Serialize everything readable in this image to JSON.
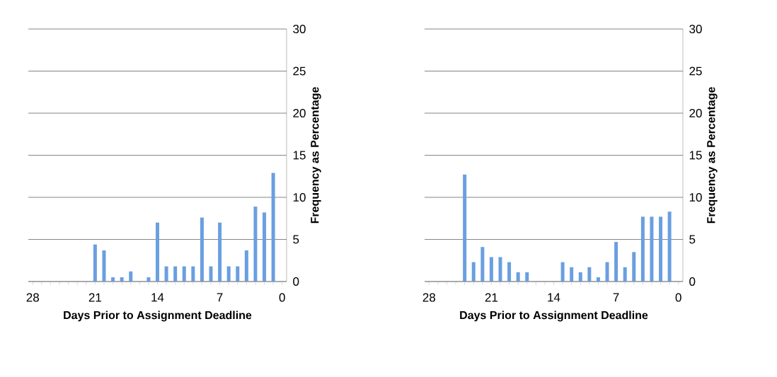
{
  "chart_data": [
    {
      "type": "bar",
      "categories": [
        "28",
        null,
        null,
        null,
        null,
        null,
        null,
        "21",
        null,
        null,
        null,
        null,
        null,
        null,
        "14",
        null,
        null,
        null,
        null,
        null,
        null,
        "7",
        null,
        null,
        null,
        null,
        null,
        null,
        "0"
      ],
      "values": [
        0,
        0,
        0,
        0,
        0,
        0,
        0,
        4.4,
        3.7,
        0.5,
        0.5,
        1.2,
        0,
        0.5,
        7.0,
        1.8,
        1.8,
        1.8,
        1.8,
        7.6,
        1.8,
        7.0,
        1.8,
        1.8,
        3.7,
        8.9,
        8.2,
        12.9,
        0
      ],
      "color": "#6a9fe0",
      "xlabel": "Days Prior to Assignment Deadline",
      "ylabel": "Frequency as Percentage",
      "ylim": [
        0,
        30
      ],
      "yticks": [
        0,
        5,
        10,
        15,
        20,
        25,
        30
      ],
      "grid": "y"
    },
    {
      "type": "bar",
      "categories": [
        "28",
        null,
        null,
        null,
        null,
        null,
        null,
        "21",
        null,
        null,
        null,
        null,
        null,
        null,
        "14",
        null,
        null,
        null,
        null,
        null,
        null,
        "7",
        null,
        null,
        null,
        null,
        null,
        null,
        "0"
      ],
      "values": [
        0,
        0,
        0,
        0,
        12.7,
        2.3,
        4.1,
        2.9,
        2.9,
        2.3,
        1.1,
        1.1,
        0,
        0,
        0,
        2.3,
        1.7,
        1.1,
        1.7,
        0.5,
        2.3,
        4.7,
        1.7,
        3.5,
        7.7,
        7.7,
        7.7,
        8.3,
        0
      ],
      "color": "#6a9fe0",
      "xlabel": "Days Prior to Assignment Deadline",
      "ylabel": "Frequency as Percentage",
      "ylim": [
        0,
        30
      ],
      "yticks": [
        0,
        5,
        10,
        15,
        20,
        25,
        30
      ],
      "grid": "y"
    }
  ]
}
